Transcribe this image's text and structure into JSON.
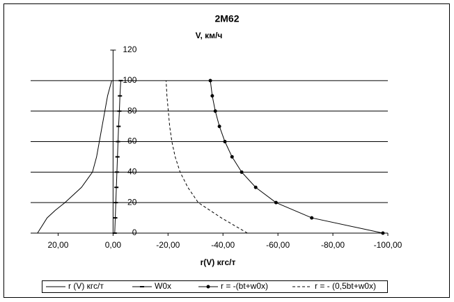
{
  "chart_data": {
    "type": "scatter",
    "title": "2М62",
    "ylabel": "V, км/ч",
    "xlabel": "r(V) кгс/т",
    "xlim": [
      30,
      -100
    ],
    "ylim": [
      0,
      120
    ],
    "xticks": [
      {
        "value": 20,
        "label": "20,00"
      },
      {
        "value": 0,
        "label": "0,00"
      },
      {
        "value": -20,
        "label": "-20,00"
      },
      {
        "value": -40,
        "label": "-40,00"
      },
      {
        "value": -60,
        "label": "-60,00"
      },
      {
        "value": -80,
        "label": "-80,00"
      },
      {
        "value": -100,
        "label": "-100,00"
      }
    ],
    "yticks": [
      0,
      20,
      40,
      60,
      80,
      100,
      120
    ],
    "grid": true,
    "legend": "bottom",
    "series": [
      {
        "name": "r (V) кгс/т",
        "color": "#000000",
        "style": "solid",
        "marker": "none",
        "x": [
          27.5,
          24,
          21,
          17.5,
          11.5,
          7.5,
          6,
          5,
          4,
          3,
          2,
          0.5
        ],
        "y": [
          0,
          10,
          15,
          20,
          30,
          40,
          50,
          60,
          70,
          80,
          90,
          100
        ]
      },
      {
        "name": "W0x",
        "color": "#000000",
        "style": "solid",
        "marker": "dash",
        "x": [
          -0.6,
          -0.8,
          -1.0,
          -1.2,
          -1.4,
          -1.6,
          -1.8,
          -2.0,
          -2.3,
          -2.5,
          -2.8
        ],
        "y": [
          0,
          10,
          20,
          30,
          40,
          50,
          60,
          70,
          80,
          90,
          100
        ]
      },
      {
        "name": "r = -(bt+w0x)",
        "color": "#000000",
        "style": "solid",
        "marker": "circle",
        "x": [
          -98.2,
          -72.3,
          -59.3,
          -51.9,
          -46.8,
          -43.3,
          -40.7,
          -38.7,
          -37.2,
          -36.1,
          -35.4
        ],
        "y": [
          0,
          10,
          20,
          30,
          40,
          50,
          60,
          70,
          80,
          90,
          100
        ]
      },
      {
        "name": "r = - (0,5bt+w0x)",
        "color": "#000000",
        "style": "dashed",
        "marker": "none",
        "x": [
          -48.9,
          -39.4,
          -31,
          -27.2,
          -24.4,
          -22.6,
          -21.4,
          -20.6,
          -20.1,
          -19.6,
          -19.3
        ],
        "y": [
          0,
          10,
          20,
          30,
          40,
          50,
          60,
          70,
          80,
          90,
          100
        ]
      }
    ]
  }
}
